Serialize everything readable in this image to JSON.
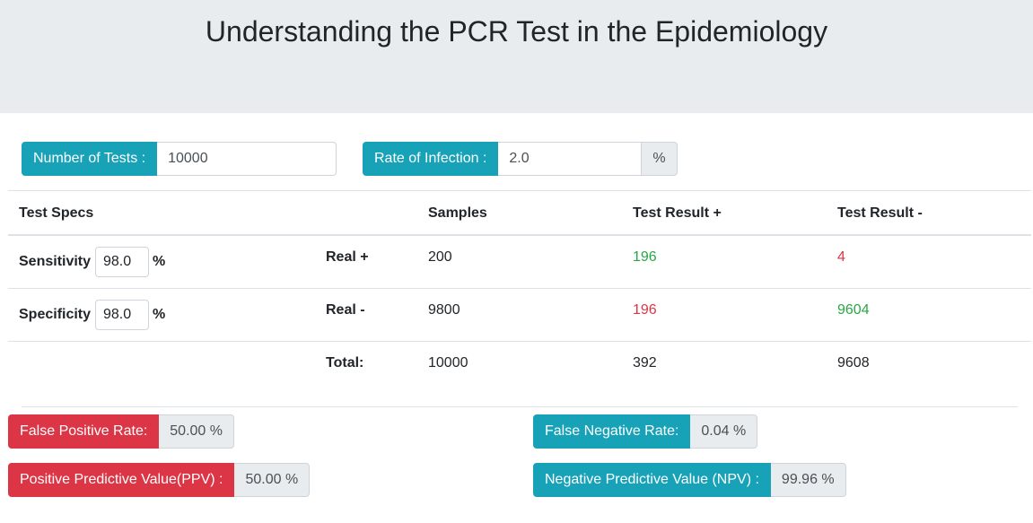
{
  "header": {
    "title": "Understanding the PCR Test in the Epidemiology"
  },
  "inputs": {
    "tests_label": "Number of Tests :",
    "tests_value": "10000",
    "rate_label": "Rate of Infection :",
    "rate_value": "2.0",
    "rate_unit": "%"
  },
  "table": {
    "headers": {
      "specs": "Test Specs",
      "samples": "Samples",
      "pos": "Test Result +",
      "neg": "Test Result -"
    },
    "sensitivity": {
      "label": "Sensitivity",
      "value": "98.0",
      "unit": "%"
    },
    "specificity": {
      "label": "Specificity",
      "value": "98.0",
      "unit": "%"
    },
    "rows": [
      {
        "label": "Real +",
        "samples": "200",
        "pos": "196",
        "neg": "4"
      },
      {
        "label": "Real -",
        "samples": "9800",
        "pos": "196",
        "neg": "9604"
      },
      {
        "label": "Total:",
        "samples": "10000",
        "pos": "392",
        "neg": "9608"
      }
    ]
  },
  "results": {
    "fpr_label": "False Positive Rate:",
    "fpr_value": "50.00 %",
    "ppv_label": "Positive Predictive Value(PPV) :",
    "ppv_value": "50.00 %",
    "fnr_label": "False Negative Rate:",
    "fnr_value": "0.04 %",
    "npv_label": "Negative Predictive Value (NPV) :",
    "npv_value": "99.96 %"
  },
  "colors": {
    "info": "#17a2b8",
    "danger": "#dc3545",
    "success": "#28a745"
  }
}
